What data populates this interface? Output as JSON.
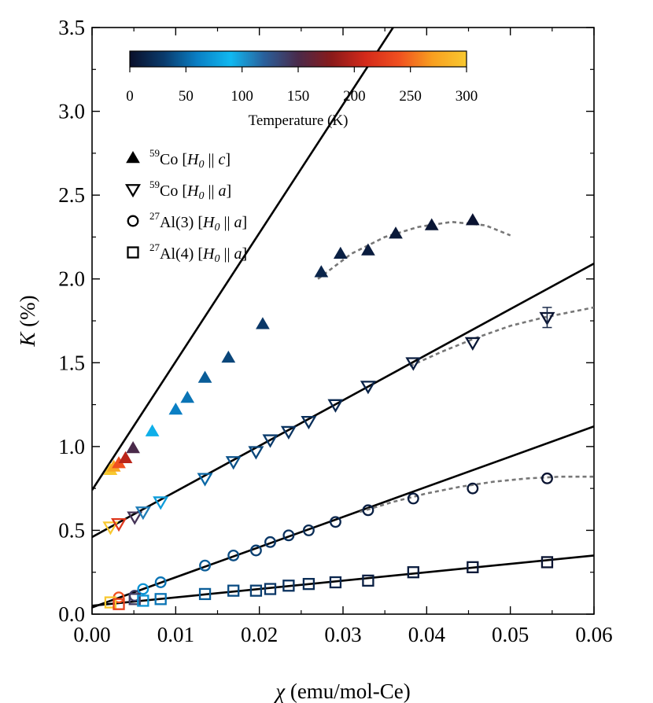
{
  "chart_data": {
    "type": "scatter",
    "title": "",
    "xlabel_symbol": "χ",
    "xlabel_unit": "(emu/mol-Ce)",
    "ylabel_symbol": "K",
    "ylabel_unit": "(%)",
    "xlim": [
      0.0,
      0.06
    ],
    "ylim": [
      0.0,
      3.5
    ],
    "x_ticks": [
      0.0,
      0.01,
      0.02,
      0.03,
      0.04,
      0.05,
      0.06
    ],
    "x_tick_labels": [
      "0.00",
      "0.01",
      "0.02",
      "0.03",
      "0.04",
      "0.05",
      "0.06"
    ],
    "y_ticks": [
      0.0,
      0.5,
      1.0,
      1.5,
      2.0,
      2.5,
      3.0,
      3.5
    ],
    "y_tick_labels": [
      "0.0",
      "0.5",
      "1.0",
      "1.5",
      "2.0",
      "2.5",
      "3.0",
      "3.5"
    ],
    "grid": false,
    "colorbar": {
      "label": "Temperature (K)",
      "range": [
        0,
        300
      ],
      "ticks": [
        0,
        50,
        100,
        150,
        200,
        250,
        300
      ],
      "tick_labels": [
        "0",
        "50",
        "100",
        "150",
        "200",
        "250",
        "300"
      ],
      "colormap": [
        "#0a0f2a",
        "#0a3a6b",
        "#0a7fc4",
        "#10b8f0",
        "#2a5f9a",
        "#4a2a4a",
        "#8a1a1a",
        "#d42a1a",
        "#f05020",
        "#f8a020",
        "#f8c830"
      ]
    },
    "legend_position": "upper-left",
    "series": [
      {
        "name": "59Co [H0 || c]",
        "marker": "triangle-up-filled",
        "points": [
          {
            "x": 0.0022,
            "y": 0.86,
            "T": 300
          },
          {
            "x": 0.0026,
            "y": 0.88,
            "T": 275
          },
          {
            "x": 0.0032,
            "y": 0.9,
            "T": 240
          },
          {
            "x": 0.004,
            "y": 0.93,
            "T": 200
          },
          {
            "x": 0.0049,
            "y": 0.99,
            "T": 150
          },
          {
            "x": 0.0072,
            "y": 1.09,
            "T": 85
          },
          {
            "x": 0.01,
            "y": 1.22,
            "T": 60
          },
          {
            "x": 0.0114,
            "y": 1.29,
            "T": 55
          },
          {
            "x": 0.0135,
            "y": 1.41,
            "T": 45
          },
          {
            "x": 0.0163,
            "y": 1.53,
            "T": 35
          },
          {
            "x": 0.0204,
            "y": 1.73,
            "T": 28
          },
          {
            "x": 0.0274,
            "y": 2.04,
            "T": 15
          },
          {
            "x": 0.0297,
            "y": 2.15,
            "T": 12
          },
          {
            "x": 0.033,
            "y": 2.17,
            "T": 9
          },
          {
            "x": 0.0363,
            "y": 2.27,
            "T": 7
          },
          {
            "x": 0.0406,
            "y": 2.32,
            "T": 5
          },
          {
            "x": 0.0455,
            "y": 2.35,
            "T": 3
          }
        ],
        "fit_line": {
          "intercept": 0.74,
          "slope": 76.7
        },
        "dashed_curve": [
          [
            0.027,
            2.0
          ],
          [
            0.031,
            2.15
          ],
          [
            0.035,
            2.25
          ],
          [
            0.039,
            2.31
          ],
          [
            0.043,
            2.34
          ],
          [
            0.047,
            2.32
          ],
          [
            0.05,
            2.26
          ]
        ]
      },
      {
        "name": "59Co [H0 || a]",
        "marker": "triangle-down-open",
        "points": [
          {
            "x": 0.0022,
            "y": 0.52,
            "T": 300
          },
          {
            "x": 0.0032,
            "y": 0.54,
            "T": 220
          },
          {
            "x": 0.0051,
            "y": 0.58,
            "T": 145
          },
          {
            "x": 0.0061,
            "y": 0.61,
            "T": 110
          },
          {
            "x": 0.0082,
            "y": 0.67,
            "T": 75
          },
          {
            "x": 0.0135,
            "y": 0.81,
            "T": 50
          },
          {
            "x": 0.0169,
            "y": 0.91,
            "T": 40
          },
          {
            "x": 0.0196,
            "y": 0.97,
            "T": 35
          },
          {
            "x": 0.0213,
            "y": 1.04,
            "T": 30
          },
          {
            "x": 0.0235,
            "y": 1.09,
            "T": 25
          },
          {
            "x": 0.0259,
            "y": 1.15,
            "T": 22
          },
          {
            "x": 0.0291,
            "y": 1.25,
            "T": 18
          },
          {
            "x": 0.033,
            "y": 1.36,
            "T": 14
          },
          {
            "x": 0.0384,
            "y": 1.5,
            "T": 10
          },
          {
            "x": 0.0455,
            "y": 1.62,
            "T": 6
          },
          {
            "x": 0.0544,
            "y": 1.77,
            "T": 3
          }
        ],
        "error_bars": [
          {
            "x": 0.0544,
            "lo": 1.71,
            "hi": 1.83
          }
        ],
        "fit_line": {
          "intercept": 0.46,
          "slope": 27.2
        },
        "dashed_curve": [
          [
            0.038,
            1.48
          ],
          [
            0.042,
            1.57
          ],
          [
            0.046,
            1.65
          ],
          [
            0.05,
            1.72
          ],
          [
            0.054,
            1.77
          ],
          [
            0.058,
            1.81
          ],
          [
            0.06,
            1.83
          ]
        ]
      },
      {
        "name": "27Al(3) [H0 || a]",
        "marker": "circle-open",
        "points": [
          {
            "x": 0.0032,
            "y": 0.1,
            "T": 240
          },
          {
            "x": 0.0051,
            "y": 0.11,
            "T": 140
          },
          {
            "x": 0.0061,
            "y": 0.15,
            "T": 70
          },
          {
            "x": 0.0082,
            "y": 0.19,
            "T": 55
          },
          {
            "x": 0.0135,
            "y": 0.29,
            "T": 45
          },
          {
            "x": 0.0169,
            "y": 0.35,
            "T": 38
          },
          {
            "x": 0.0196,
            "y": 0.38,
            "T": 32
          },
          {
            "x": 0.0213,
            "y": 0.43,
            "T": 28
          },
          {
            "x": 0.0235,
            "y": 0.47,
            "T": 24
          },
          {
            "x": 0.0259,
            "y": 0.5,
            "T": 20
          },
          {
            "x": 0.0291,
            "y": 0.55,
            "T": 16
          },
          {
            "x": 0.033,
            "y": 0.62,
            "T": 12
          },
          {
            "x": 0.0384,
            "y": 0.69,
            "T": 9
          },
          {
            "x": 0.0455,
            "y": 0.75,
            "T": 6
          },
          {
            "x": 0.0544,
            "y": 0.81,
            "T": 3
          }
        ],
        "fit_line": {
          "intercept": 0.04,
          "slope": 18.0
        },
        "dashed_curve": [
          [
            0.032,
            0.61
          ],
          [
            0.036,
            0.67
          ],
          [
            0.04,
            0.72
          ],
          [
            0.044,
            0.76
          ],
          [
            0.048,
            0.79
          ],
          [
            0.052,
            0.81
          ],
          [
            0.056,
            0.82
          ],
          [
            0.06,
            0.82
          ]
        ]
      },
      {
        "name": "27Al(4) [H0 || a]",
        "marker": "square-open",
        "points": [
          {
            "x": 0.0022,
            "y": 0.07,
            "T": 300
          },
          {
            "x": 0.0032,
            "y": 0.06,
            "T": 230
          },
          {
            "x": 0.0051,
            "y": 0.09,
            "T": 140
          },
          {
            "x": 0.0061,
            "y": 0.08,
            "T": 70
          },
          {
            "x": 0.0082,
            "y": 0.09,
            "T": 55
          },
          {
            "x": 0.0135,
            "y": 0.12,
            "T": 45
          },
          {
            "x": 0.0169,
            "y": 0.14,
            "T": 38
          },
          {
            "x": 0.0196,
            "y": 0.14,
            "T": 32
          },
          {
            "x": 0.0213,
            "y": 0.15,
            "T": 28
          },
          {
            "x": 0.0235,
            "y": 0.17,
            "T": 24
          },
          {
            "x": 0.0259,
            "y": 0.18,
            "T": 20
          },
          {
            "x": 0.0291,
            "y": 0.19,
            "T": 16
          },
          {
            "x": 0.033,
            "y": 0.2,
            "T": 12
          },
          {
            "x": 0.0384,
            "y": 0.25,
            "T": 9
          },
          {
            "x": 0.0455,
            "y": 0.28,
            "T": 6
          },
          {
            "x": 0.0544,
            "y": 0.31,
            "T": 3
          }
        ],
        "fit_line": {
          "intercept": 0.05,
          "slope": 5.0
        }
      }
    ],
    "legend": [
      {
        "marker": "triangle-up-filled",
        "mass": "59",
        "element": "Co [",
        "field": "H",
        "sub": "0",
        "sep": " || ",
        "axis": "c",
        "close": "]"
      },
      {
        "marker": "triangle-down-open",
        "mass": "59",
        "element": "Co [",
        "field": "H",
        "sub": "0",
        "sep": " || ",
        "axis": "a",
        "close": "]"
      },
      {
        "marker": "circle-open",
        "mass": "27",
        "element": "Al(3) [",
        "field": "H",
        "sub": "0",
        "sep": " || ",
        "axis": "a",
        "close": "]"
      },
      {
        "marker": "square-open",
        "mass": "27",
        "element": "Al(4) [",
        "field": "H",
        "sub": "0",
        "sep": " || ",
        "axis": "a",
        "close": "]"
      }
    ]
  }
}
